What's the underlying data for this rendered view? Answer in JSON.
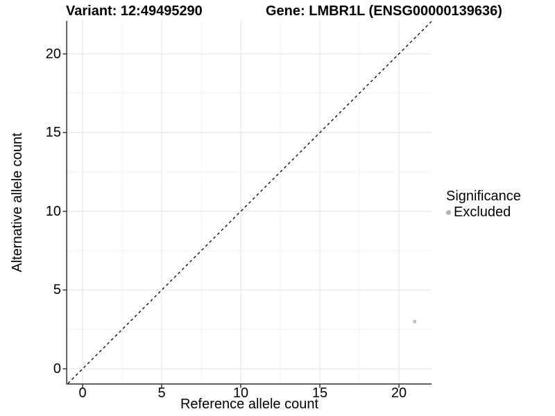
{
  "chart_data": {
    "type": "scatter",
    "title_variant": "Variant: 12:49495290",
    "title_gene": "Gene: LMBR1L (ENSG00000139636)",
    "xlabel": "Reference allele count",
    "ylabel": "Alternative allele count",
    "x_ticks": [
      0,
      5,
      10,
      15,
      20
    ],
    "y_ticks": [
      0,
      5,
      10,
      15,
      20
    ],
    "x_minor_gridlines": [
      2.5,
      7.5,
      12.5,
      17.5
    ],
    "y_minor_gridlines": [
      2.5,
      7.5,
      12.5,
      17.5
    ],
    "xlim": [
      -0.97,
      22.06
    ],
    "ylim": [
      -0.93,
      22.1
    ],
    "grid": "major and minor, light gray on white",
    "reference_line": {
      "type": "identity y=x",
      "style": "dashed",
      "color": "#000000"
    },
    "series": [
      {
        "name": "Excluded",
        "color": "#bdbdbd",
        "points": [
          {
            "x": 21,
            "y": 3
          }
        ]
      }
    ],
    "legend": {
      "title": "Significance",
      "position": "right",
      "entries": [
        {
          "label": "Excluded",
          "color": "#b3b3b3"
        }
      ]
    },
    "colors": {
      "background": "#ffffff",
      "grid_major": "#e6e6e6",
      "grid_minor": "#f2f2f2",
      "axis_line": "#3d3d3d",
      "text": "#000000",
      "point": "#bdbdbd"
    }
  }
}
